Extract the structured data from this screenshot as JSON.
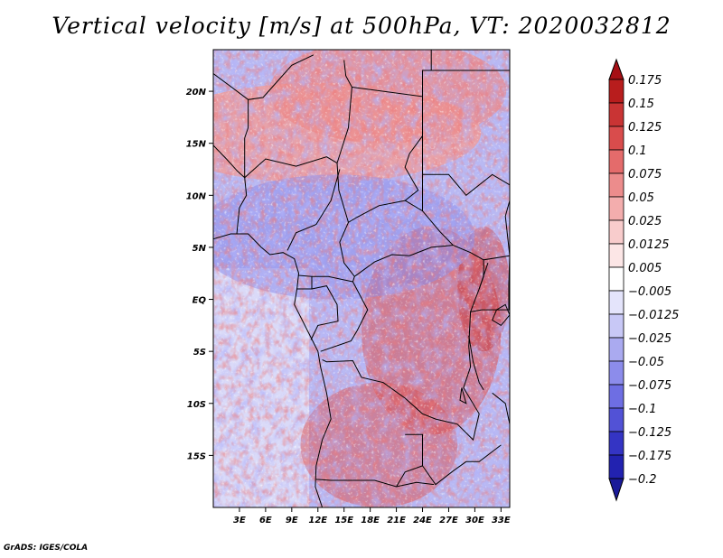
{
  "title": "Vertical velocity [m/s] at 500hPa, VT: 2020032812",
  "credit": "GrADS: IGES/COLA",
  "map": {
    "lon_range": [
      0,
      34
    ],
    "lat_range": [
      -20,
      24
    ],
    "lat_ticks": [
      {
        "value": 20,
        "label": "20N"
      },
      {
        "value": 15,
        "label": "15N"
      },
      {
        "value": 10,
        "label": "10N"
      },
      {
        "value": 5,
        "label": "5N"
      },
      {
        "value": 0,
        "label": "EQ"
      },
      {
        "value": -5,
        "label": "5S"
      },
      {
        "value": -10,
        "label": "10S"
      },
      {
        "value": -15,
        "label": "15S"
      }
    ],
    "lon_ticks": [
      {
        "value": 3,
        "label": "3E"
      },
      {
        "value": 6,
        "label": "6E"
      },
      {
        "value": 9,
        "label": "9E"
      },
      {
        "value": 12,
        "label": "12E"
      },
      {
        "value": 15,
        "label": "15E"
      },
      {
        "value": 18,
        "label": "18E"
      },
      {
        "value": 21,
        "label": "21E"
      },
      {
        "value": 24,
        "label": "24E"
      },
      {
        "value": 27,
        "label": "27E"
      },
      {
        "value": 30,
        "label": "30E"
      },
      {
        "value": 33,
        "label": "33E"
      }
    ]
  },
  "colorbar": {
    "levels": [
      {
        "label": "0.175",
        "color": "#a50f15"
      },
      {
        "label": "0.15",
        "color": "#b81d1d"
      },
      {
        "label": "0.125",
        "color": "#c93434"
      },
      {
        "label": "0.1",
        "color": "#d94c4c"
      },
      {
        "label": "0.075",
        "color": "#e46b6b"
      },
      {
        "label": "0.05",
        "color": "#ec8c8c"
      },
      {
        "label": "0.025",
        "color": "#f3adad"
      },
      {
        "label": "0.0125",
        "color": "#f8cccc"
      },
      {
        "label": "0.005",
        "color": "#fce6e6"
      },
      {
        "label": "−0.005",
        "color": "#ffffff"
      },
      {
        "label": "−0.0125",
        "color": "#e4e4fb"
      },
      {
        "label": "−0.025",
        "color": "#c8c8f6"
      },
      {
        "label": "−0.05",
        "color": "#aaaaf0"
      },
      {
        "label": "−0.075",
        "color": "#8c8ceb"
      },
      {
        "label": "−0.1",
        "color": "#6e6ee3"
      },
      {
        "label": "−0.125",
        "color": "#5252d6"
      },
      {
        "label": "−0.175",
        "color": "#3434c4"
      },
      {
        "label": "−0.2",
        "color": "#2222b0"
      }
    ],
    "top_color": "#a50f15",
    "bottom_color": "#1a1a99"
  }
}
